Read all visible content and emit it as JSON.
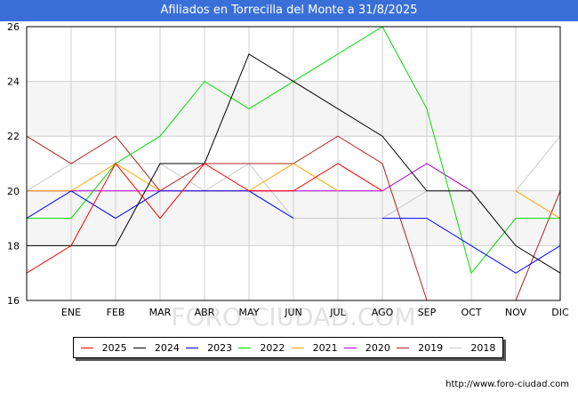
{
  "title": "Afiliados en Torrecilla del Monte a 31/8/2025",
  "watermark": "FORO-CIUDAD.COM",
  "footer_url": "http://www.foro-ciudad.com",
  "chart_data": {
    "type": "line",
    "title": "Afiliados en Torrecilla del Monte a 31/8/2025",
    "categories": [
      "",
      "ENE",
      "FEB",
      "MAR",
      "ABR",
      "MAY",
      "JUN",
      "JUL",
      "AGO",
      "SEP",
      "OCT",
      "NOV",
      "DIC"
    ],
    "ylim": [
      16,
      26
    ],
    "yticks": [
      16,
      18,
      20,
      22,
      24,
      26
    ],
    "grid": true,
    "legend_position": "bottom",
    "series": [
      {
        "name": "2025",
        "color": "#ff0000",
        "values": [
          17,
          18,
          21,
          19,
          21,
          20,
          20,
          21,
          20,
          null,
          null,
          null,
          null
        ]
      },
      {
        "name": "2024",
        "color": "#000000",
        "values": [
          18,
          18,
          18,
          21,
          21,
          25,
          24,
          23,
          22,
          20,
          20,
          18,
          17
        ]
      },
      {
        "name": "2023",
        "color": "#0000ff",
        "values": [
          19,
          20,
          19,
          20,
          20,
          20,
          19,
          null,
          19,
          19,
          18,
          17,
          18
        ]
      },
      {
        "name": "2022",
        "color": "#00dd00",
        "values": [
          19,
          19,
          21,
          22,
          24,
          23,
          24,
          25,
          26,
          23,
          17,
          19,
          19
        ]
      },
      {
        "name": "2021",
        "color": "#ffa500",
        "values": [
          20,
          20,
          21,
          20,
          20,
          20,
          21,
          20,
          null,
          null,
          null,
          20,
          19
        ]
      },
      {
        "name": "2020",
        "color": "#aa00cc",
        "values": [
          20,
          20,
          20,
          20,
          20,
          20,
          20,
          20,
          20,
          21,
          20,
          null,
          20
        ]
      },
      {
        "name": "2019",
        "color": "#b22222",
        "values": [
          22,
          21,
          22,
          20,
          21,
          21,
          21,
          22,
          21,
          16,
          null,
          16,
          20
        ]
      },
      {
        "name": "2018",
        "color": "#c8c8c8",
        "values": [
          20,
          21,
          21,
          21,
          20,
          21,
          19,
          19,
          19,
          20,
          null,
          20,
          22
        ]
      }
    ]
  }
}
